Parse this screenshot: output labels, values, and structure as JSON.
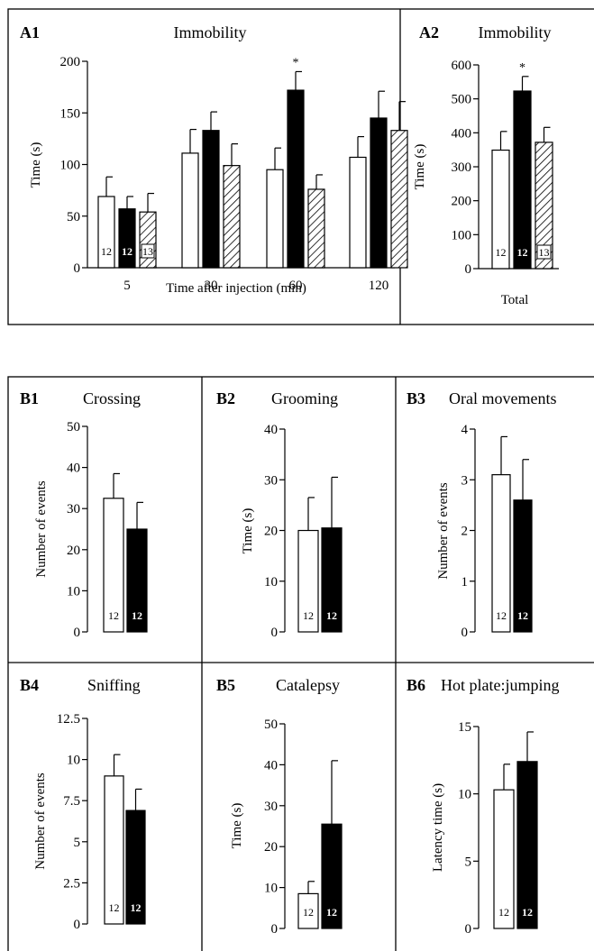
{
  "chart_data": [
    {
      "panel": "A1",
      "type": "bar",
      "title": "Immobility",
      "xlabel": "Time after injection (min)",
      "ylabel": "Time (s)",
      "ylim": [
        0,
        200
      ],
      "yticks": [
        "0",
        "50",
        "100",
        "150",
        "200"
      ],
      "categories": [
        "5",
        "30",
        "60",
        "120"
      ],
      "series": [
        {
          "style": "open",
          "values": [
            69,
            111,
            95,
            107
          ],
          "errors": [
            19,
            23,
            21,
            20
          ],
          "n": "12"
        },
        {
          "style": "filled",
          "values": [
            57,
            133,
            172,
            145
          ],
          "errors": [
            12,
            18,
            18,
            26
          ],
          "n": "12"
        },
        {
          "style": "hatched",
          "values": [
            54,
            99,
            76,
            133
          ],
          "errors": [
            18,
            21,
            14,
            28
          ],
          "n": "13"
        }
      ],
      "significance": [
        {
          "category": "60",
          "series": 1,
          "mark": "*"
        }
      ]
    },
    {
      "panel": "A2",
      "type": "bar",
      "title": "Immobility",
      "xlabel": "Total",
      "ylabel": "Time (s)",
      "ylim": [
        0,
        600
      ],
      "yticks": [
        "0",
        "100",
        "200",
        "300",
        "400",
        "500",
        "600"
      ],
      "categories": [
        "Total"
      ],
      "series": [
        {
          "style": "open",
          "values": [
            349
          ],
          "errors": [
            55
          ],
          "n": "12"
        },
        {
          "style": "filled",
          "values": [
            523
          ],
          "errors": [
            43
          ],
          "n": "12"
        },
        {
          "style": "hatched",
          "values": [
            372
          ],
          "errors": [
            44
          ],
          "n": "13"
        }
      ],
      "significance": [
        {
          "category": "Total",
          "series": 1,
          "mark": "*"
        }
      ]
    },
    {
      "panel": "B1",
      "type": "bar",
      "title": "Crossing",
      "ylabel": "Number of events",
      "ylim": [
        0,
        50
      ],
      "yticks": [
        "0",
        "10",
        "20",
        "30",
        "40",
        "50"
      ],
      "series": [
        {
          "style": "open",
          "values": [
            32.5
          ],
          "errors": [
            6
          ],
          "n": "12"
        },
        {
          "style": "filled",
          "values": [
            25
          ],
          "errors": [
            6.5
          ],
          "n": "12"
        }
      ]
    },
    {
      "panel": "B2",
      "type": "bar",
      "title": "Grooming",
      "ylabel": "Time (s)",
      "ylim": [
        0,
        40
      ],
      "yticks": [
        "0",
        "10",
        "20",
        "30",
        "40"
      ],
      "series": [
        {
          "style": "open",
          "values": [
            20
          ],
          "errors": [
            6.5
          ],
          "n": "12"
        },
        {
          "style": "filled",
          "values": [
            20.5
          ],
          "errors": [
            10
          ],
          "n": "12"
        }
      ]
    },
    {
      "panel": "B3",
      "type": "bar",
      "title": "Oral movements",
      "ylabel": "Number of events",
      "ylim": [
        0,
        4
      ],
      "yticks": [
        "0",
        "1",
        "2",
        "3",
        "4"
      ],
      "series": [
        {
          "style": "open",
          "values": [
            3.1
          ],
          "errors": [
            0.75
          ],
          "n": "12"
        },
        {
          "style": "filled",
          "values": [
            2.6
          ],
          "errors": [
            0.8
          ],
          "n": "12"
        }
      ]
    },
    {
      "panel": "B4",
      "type": "bar",
      "title": "Sniffing",
      "ylabel": "Number of events",
      "ylim": [
        0,
        12.5
      ],
      "yticks": [
        "0",
        "2.5",
        "5",
        "7.5",
        "10",
        "12.5"
      ],
      "series": [
        {
          "style": "open",
          "values": [
            9
          ],
          "errors": [
            1.3
          ],
          "n": "12"
        },
        {
          "style": "filled",
          "values": [
            6.9
          ],
          "errors": [
            1.3
          ],
          "n": "12"
        }
      ]
    },
    {
      "panel": "B5",
      "type": "bar",
      "title": "Catalepsy",
      "ylabel": "Time (s)",
      "ylim": [
        0,
        50
      ],
      "yticks": [
        "0",
        "10",
        "20",
        "30",
        "40",
        "50"
      ],
      "series": [
        {
          "style": "open",
          "values": [
            8.5
          ],
          "errors": [
            3
          ],
          "n": "12"
        },
        {
          "style": "filled",
          "values": [
            25.5
          ],
          "errors": [
            15.5
          ],
          "n": "12"
        }
      ]
    },
    {
      "panel": "B6",
      "type": "bar",
      "title": "Hot plate:jumping",
      "ylabel": "Latency time (s)",
      "ylim": [
        0,
        15
      ],
      "yticks": [
        "0",
        "5",
        "10",
        "15"
      ],
      "series": [
        {
          "style": "open",
          "values": [
            10.3
          ],
          "errors": [
            1.9
          ],
          "n": "12"
        },
        {
          "style": "filled",
          "values": [
            12.4
          ],
          "errors": [
            2.2
          ],
          "n": "12"
        }
      ]
    }
  ]
}
